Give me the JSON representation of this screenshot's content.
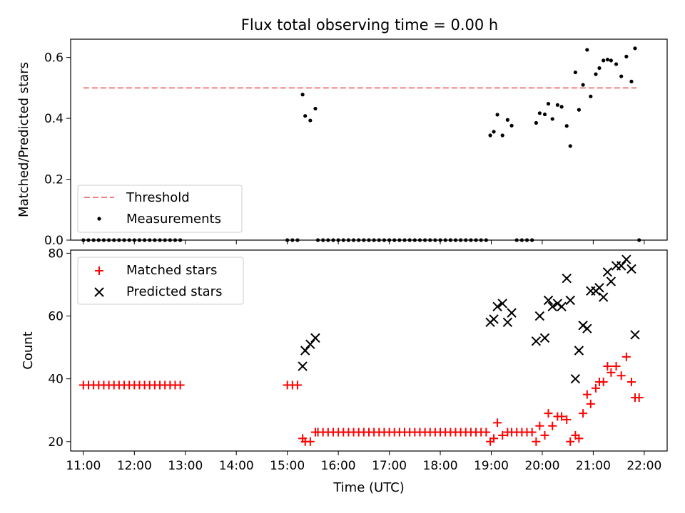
{
  "chart_data": [
    {
      "type": "scatter",
      "title": "Flux total observing time = 0.00 h",
      "xlabel": "",
      "ylabel": "Matched/Predicted stars",
      "xlim": [
        10.75,
        22.45
      ],
      "ylim": [
        0,
        0.66
      ],
      "yticks": [
        0.0,
        0.2,
        0.4,
        0.6
      ],
      "ytick_labels": [
        "0.0",
        "0.2",
        "0.4",
        "0.6"
      ],
      "legend_position": "lower-left",
      "threshold": {
        "name": "Threshold",
        "color": "#f08080",
        "style": "dashed",
        "y": 0.5,
        "x_range": [
          11.0,
          21.85
        ]
      },
      "series": [
        {
          "name": "Measurements",
          "marker": "dot",
          "color": "#000000",
          "x": [
            11.0,
            11.1,
            11.2,
            11.3,
            11.4,
            11.5,
            11.6,
            11.7,
            11.8,
            11.9,
            12.0,
            12.1,
            12.2,
            12.3,
            12.4,
            12.5,
            12.6,
            12.7,
            12.8,
            12.9,
            15.0,
            15.1,
            15.2,
            15.3,
            15.35,
            15.45,
            15.55,
            15.6,
            15.7,
            15.8,
            15.9,
            16.0,
            16.1,
            16.2,
            16.3,
            16.4,
            16.5,
            16.6,
            16.7,
            16.8,
            16.9,
            17.0,
            17.1,
            17.2,
            17.3,
            17.4,
            17.5,
            17.6,
            17.7,
            17.8,
            17.9,
            18.0,
            18.1,
            18.2,
            18.3,
            18.4,
            18.5,
            18.6,
            18.7,
            18.8,
            18.9,
            18.98,
            19.05,
            19.12,
            19.22,
            19.32,
            19.4,
            19.5,
            19.6,
            19.7,
            19.8,
            19.88,
            19.95,
            20.05,
            20.12,
            20.2,
            20.3,
            20.38,
            20.48,
            20.55,
            20.65,
            20.72,
            20.8,
            20.88,
            20.95,
            21.05,
            21.12,
            21.2,
            21.28,
            21.35,
            21.45,
            21.55,
            21.65,
            21.75,
            21.82,
            21.9
          ],
          "y": [
            0,
            0,
            0,
            0,
            0,
            0,
            0,
            0,
            0,
            0,
            0,
            0,
            0,
            0,
            0,
            0,
            0,
            0,
            0,
            0,
            0,
            0,
            0,
            0.478,
            0.408,
            0.393,
            0.432,
            0,
            0,
            0,
            0,
            0,
            0,
            0,
            0,
            0,
            0,
            0,
            0,
            0,
            0,
            0,
            0,
            0,
            0,
            0,
            0,
            0,
            0,
            0,
            0,
            0,
            0,
            0,
            0,
            0,
            0,
            0,
            0,
            0,
            0,
            0.344,
            0.356,
            0.412,
            0.344,
            0.395,
            0.376,
            0,
            0,
            0,
            0,
            0.385,
            0.417,
            0.413,
            0.448,
            0.398,
            0.444,
            0.438,
            0.375,
            0.309,
            0.551,
            0.428,
            0.51,
            0.625,
            0.472,
            0.545,
            0.565,
            0.59,
            0.593,
            0.59,
            0.578,
            0.538,
            0.603,
            0.521,
            0.63,
            0
          ]
        }
      ]
    },
    {
      "type": "scatter",
      "title": "",
      "xlabel": "Time (UTC)",
      "ylabel": "Count",
      "xlim": [
        10.75,
        22.45
      ],
      "ylim": [
        17,
        81
      ],
      "yticks": [
        20,
        40,
        60,
        80
      ],
      "ytick_labels": [
        "20",
        "40",
        "60",
        "80"
      ],
      "xticks": [
        11,
        12,
        13,
        14,
        15,
        16,
        17,
        18,
        19,
        20,
        21,
        22
      ],
      "xtick_labels": [
        "11:00",
        "12:00",
        "13:00",
        "14:00",
        "15:00",
        "16:00",
        "17:00",
        "18:00",
        "19:00",
        "20:00",
        "21:00",
        "22:00"
      ],
      "legend_position": "upper-left",
      "series": [
        {
          "name": "Matched stars",
          "marker": "plus",
          "color": "#ff0000",
          "x": [
            11.0,
            11.1,
            11.2,
            11.3,
            11.4,
            11.5,
            11.6,
            11.7,
            11.8,
            11.9,
            12.0,
            12.1,
            12.2,
            12.3,
            12.4,
            12.5,
            12.6,
            12.7,
            12.8,
            12.9,
            15.0,
            15.1,
            15.2,
            15.3,
            15.35,
            15.45,
            15.55,
            15.6,
            15.7,
            15.8,
            15.9,
            16.0,
            16.1,
            16.2,
            16.3,
            16.4,
            16.5,
            16.6,
            16.7,
            16.8,
            16.9,
            17.0,
            17.1,
            17.2,
            17.3,
            17.4,
            17.5,
            17.6,
            17.7,
            17.8,
            17.9,
            18.0,
            18.1,
            18.2,
            18.3,
            18.4,
            18.5,
            18.6,
            18.7,
            18.8,
            18.9,
            18.98,
            19.05,
            19.12,
            19.22,
            19.32,
            19.4,
            19.5,
            19.6,
            19.7,
            19.8,
            19.88,
            19.95,
            20.05,
            20.12,
            20.2,
            20.3,
            20.38,
            20.48,
            20.55,
            20.65,
            20.72,
            20.8,
            20.88,
            20.95,
            21.05,
            21.12,
            21.2,
            21.28,
            21.35,
            21.45,
            21.55,
            21.65,
            21.75,
            21.82,
            21.9
          ],
          "y": [
            38,
            38,
            38,
            38,
            38,
            38,
            38,
            38,
            38,
            38,
            38,
            38,
            38,
            38,
            38,
            38,
            38,
            38,
            38,
            38,
            38,
            38,
            38,
            21,
            20,
            20,
            23,
            23,
            23,
            23,
            23,
            23,
            23,
            23,
            23,
            23,
            23,
            23,
            23,
            23,
            23,
            23,
            23,
            23,
            23,
            23,
            23,
            23,
            23,
            23,
            23,
            23,
            23,
            23,
            23,
            23,
            23,
            23,
            23,
            23,
            23,
            20,
            21,
            26,
            22,
            23,
            23,
            23,
            23,
            23,
            23,
            20,
            25,
            22,
            29,
            25,
            28,
            28,
            27,
            20,
            22,
            21,
            29,
            35,
            32,
            37,
            39,
            39,
            44,
            42,
            44,
            41,
            47,
            39,
            34,
            34
          ]
        },
        {
          "name": "Predicted stars",
          "marker": "x",
          "color": "#000000",
          "x": [
            15.3,
            15.35,
            15.45,
            15.55,
            18.98,
            19.05,
            19.12,
            19.22,
            19.32,
            19.4,
            19.88,
            19.95,
            20.05,
            20.12,
            20.2,
            20.3,
            20.38,
            20.48,
            20.55,
            20.65,
            20.72,
            20.8,
            20.88,
            20.95,
            21.05,
            21.12,
            21.2,
            21.28,
            21.35,
            21.45,
            21.55,
            21.65,
            21.75,
            21.82
          ],
          "y": [
            44,
            49,
            51,
            53,
            58,
            59,
            63,
            64,
            58,
            61,
            52,
            60,
            53,
            65,
            63,
            64,
            63,
            72,
            65,
            40,
            49,
            57,
            56,
            68,
            68,
            69,
            66,
            74,
            71,
            76,
            76,
            78,
            75,
            54
          ]
        }
      ]
    }
  ]
}
